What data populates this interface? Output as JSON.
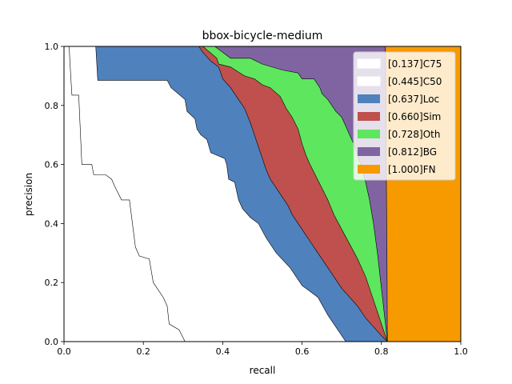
{
  "chart_data": {
    "type": "area",
    "title": "bbox-bicycle-medium",
    "xlabel": "recall",
    "ylabel": "precision",
    "xlim": [
      0.0,
      1.0
    ],
    "ylim": [
      0.0,
      1.0
    ],
    "xticks": [
      "0.0",
      "0.2",
      "0.4",
      "0.6",
      "0.8",
      "1.0"
    ],
    "yticks": [
      "0.0",
      "0.2",
      "0.4",
      "0.6",
      "0.8",
      "1.0"
    ],
    "grid": false,
    "legend_position": "top-right",
    "series": [
      {
        "name": "[0.137]C75",
        "color": "#ffffff",
        "points": [
          [
            0,
            1.0
          ],
          [
            0.013,
            1.0
          ],
          [
            0.017,
            0.9
          ],
          [
            0.02,
            0.835
          ],
          [
            0.037,
            0.835
          ],
          [
            0.045,
            0.6
          ],
          [
            0.07,
            0.6
          ],
          [
            0.075,
            0.565
          ],
          [
            0.105,
            0.565
          ],
          [
            0.12,
            0.55
          ],
          [
            0.13,
            0.52
          ],
          [
            0.145,
            0.48
          ],
          [
            0.165,
            0.48
          ],
          [
            0.18,
            0.32
          ],
          [
            0.19,
            0.29
          ],
          [
            0.215,
            0.28
          ],
          [
            0.225,
            0.2
          ],
          [
            0.25,
            0.15
          ],
          [
            0.26,
            0.12
          ],
          [
            0.265,
            0.06
          ],
          [
            0.29,
            0.04
          ],
          [
            0.305,
            0.0
          ]
        ]
      },
      {
        "name": "[0.445]C50",
        "color": "#ffffff",
        "points": [
          [
            0,
            1.0
          ],
          [
            0.08,
            1.0
          ],
          [
            0.085,
            0.885
          ],
          [
            0.26,
            0.885
          ],
          [
            0.27,
            0.86
          ],
          [
            0.305,
            0.82
          ],
          [
            0.31,
            0.78
          ],
          [
            0.33,
            0.755
          ],
          [
            0.335,
            0.72
          ],
          [
            0.345,
            0.7
          ],
          [
            0.36,
            0.685
          ],
          [
            0.37,
            0.64
          ],
          [
            0.405,
            0.62
          ],
          [
            0.41,
            0.6
          ],
          [
            0.415,
            0.55
          ],
          [
            0.43,
            0.54
          ],
          [
            0.44,
            0.48
          ],
          [
            0.45,
            0.45
          ],
          [
            0.47,
            0.42
          ],
          [
            0.49,
            0.4
          ],
          [
            0.51,
            0.35
          ],
          [
            0.535,
            0.3
          ],
          [
            0.57,
            0.25
          ],
          [
            0.6,
            0.19
          ],
          [
            0.64,
            0.15
          ],
          [
            0.665,
            0.09
          ],
          [
            0.71,
            0.0
          ]
        ]
      },
      {
        "name": "[0.637]Loc",
        "color": "#4f81bd",
        "points": [
          [
            0,
            1.0
          ],
          [
            0.34,
            1.0
          ],
          [
            0.35,
            0.98
          ],
          [
            0.37,
            0.95
          ],
          [
            0.39,
            0.93
          ],
          [
            0.4,
            0.89
          ],
          [
            0.42,
            0.86
          ],
          [
            0.44,
            0.82
          ],
          [
            0.455,
            0.79
          ],
          [
            0.47,
            0.74
          ],
          [
            0.48,
            0.7
          ],
          [
            0.49,
            0.66
          ],
          [
            0.5,
            0.62
          ],
          [
            0.51,
            0.58
          ],
          [
            0.52,
            0.55
          ],
          [
            0.535,
            0.52
          ],
          [
            0.55,
            0.49
          ],
          [
            0.565,
            0.46
          ],
          [
            0.575,
            0.43
          ],
          [
            0.585,
            0.41
          ],
          [
            0.6,
            0.38
          ],
          [
            0.62,
            0.34
          ],
          [
            0.64,
            0.3
          ],
          [
            0.66,
            0.26
          ],
          [
            0.68,
            0.22
          ],
          [
            0.7,
            0.18
          ],
          [
            0.72,
            0.15
          ],
          [
            0.74,
            0.12
          ],
          [
            0.76,
            0.08
          ],
          [
            0.78,
            0.05
          ],
          [
            0.8,
            0.02
          ],
          [
            0.815,
            0.0
          ]
        ]
      },
      {
        "name": "[0.660]Sim",
        "color": "#c0504d",
        "points": [
          [
            0,
            1.0
          ],
          [
            0.35,
            1.0
          ],
          [
            0.385,
            0.96
          ],
          [
            0.39,
            0.94
          ],
          [
            0.42,
            0.93
          ],
          [
            0.455,
            0.9
          ],
          [
            0.48,
            0.89
          ],
          [
            0.5,
            0.87
          ],
          [
            0.52,
            0.86
          ],
          [
            0.545,
            0.83
          ],
          [
            0.56,
            0.79
          ],
          [
            0.575,
            0.76
          ],
          [
            0.59,
            0.72
          ],
          [
            0.6,
            0.67
          ],
          [
            0.61,
            0.63
          ],
          [
            0.62,
            0.6
          ],
          [
            0.635,
            0.56
          ],
          [
            0.65,
            0.52
          ],
          [
            0.665,
            0.48
          ],
          [
            0.68,
            0.43
          ],
          [
            0.7,
            0.38
          ],
          [
            0.72,
            0.33
          ],
          [
            0.74,
            0.28
          ],
          [
            0.76,
            0.22
          ],
          [
            0.78,
            0.14
          ],
          [
            0.8,
            0.06
          ],
          [
            0.815,
            0.0
          ]
        ]
      },
      {
        "name": "[0.728]Oth",
        "color": "#5ee65e",
        "points": [
          [
            0,
            1.0
          ],
          [
            0.38,
            1.0
          ],
          [
            0.4,
            0.98
          ],
          [
            0.42,
            0.96
          ],
          [
            0.47,
            0.96
          ],
          [
            0.5,
            0.94
          ],
          [
            0.55,
            0.92
          ],
          [
            0.59,
            0.91
          ],
          [
            0.6,
            0.89
          ],
          [
            0.63,
            0.89
          ],
          [
            0.645,
            0.86
          ],
          [
            0.65,
            0.84
          ],
          [
            0.665,
            0.82
          ],
          [
            0.675,
            0.8
          ],
          [
            0.685,
            0.78
          ],
          [
            0.7,
            0.76
          ],
          [
            0.71,
            0.73
          ],
          [
            0.72,
            0.7
          ],
          [
            0.73,
            0.67
          ],
          [
            0.74,
            0.63
          ],
          [
            0.75,
            0.59
          ],
          [
            0.76,
            0.54
          ],
          [
            0.77,
            0.48
          ],
          [
            0.78,
            0.4
          ],
          [
            0.79,
            0.3
          ],
          [
            0.8,
            0.18
          ],
          [
            0.81,
            0.06
          ],
          [
            0.815,
            0.0
          ]
        ]
      },
      {
        "name": "[0.812]BG",
        "color": "#8064a2",
        "points": [
          [
            0,
            1.0
          ],
          [
            0.81,
            1.0
          ],
          [
            0.812,
            0.6
          ],
          [
            0.814,
            0.3
          ],
          [
            0.815,
            0.0
          ]
        ]
      },
      {
        "name": "[1.000]FN",
        "color": "#f79a00",
        "points": [
          [
            0,
            1.0
          ],
          [
            1.0,
            1.0
          ],
          [
            1.0,
            0.0
          ]
        ]
      }
    ]
  }
}
